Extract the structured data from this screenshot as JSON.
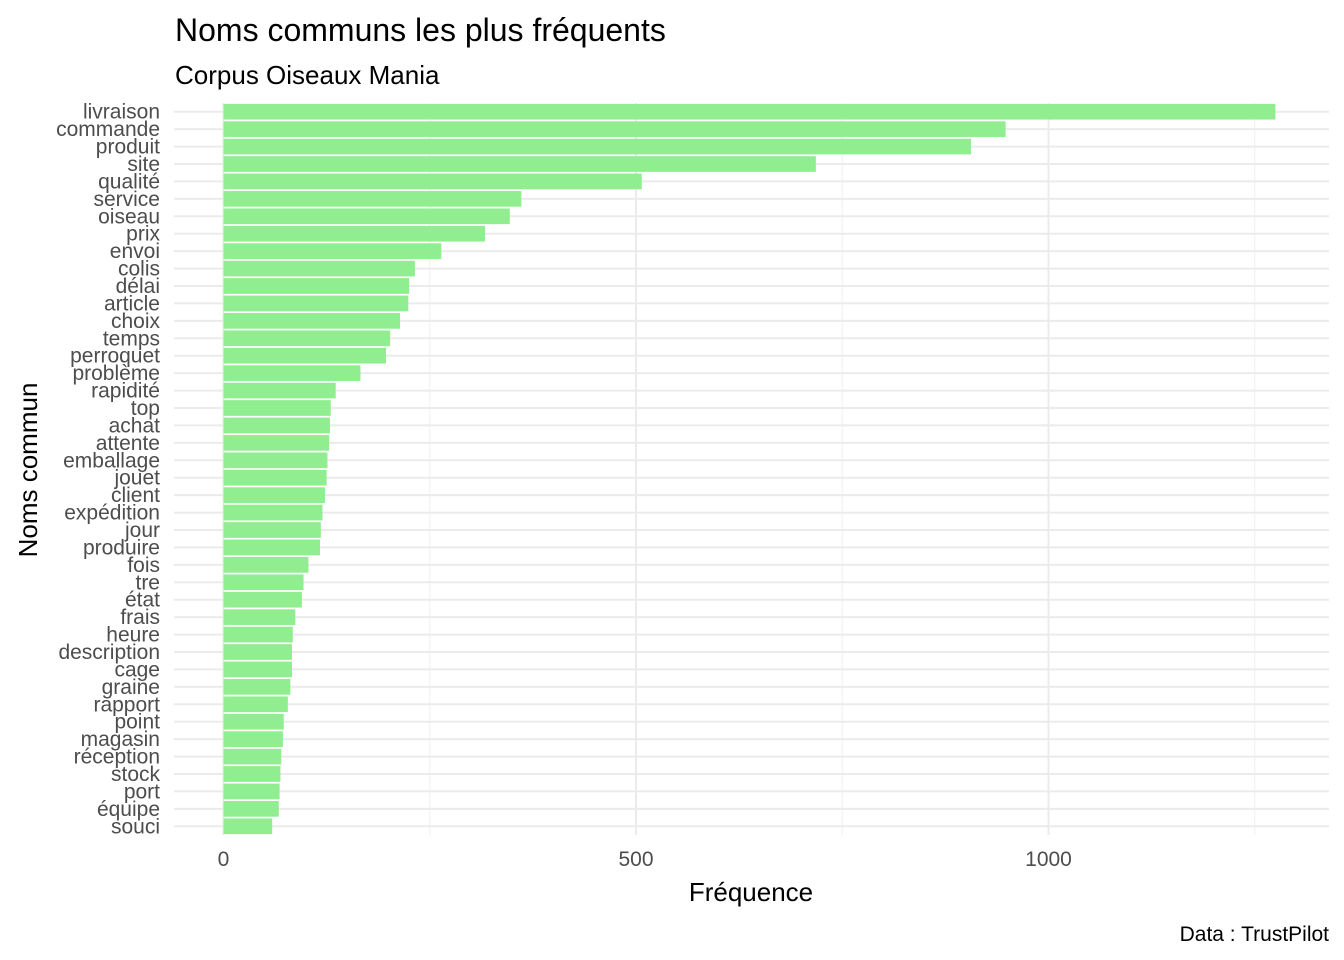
{
  "caption": "Data : TrustPilot",
  "colors": {
    "bar": "#90ee90",
    "grid": "#ebebeb",
    "text": "#4d4d4d"
  },
  "chart_data": {
    "type": "bar",
    "orientation": "horizontal",
    "title": "Noms communs les plus fréquents",
    "subtitle": "Corpus Oiseaux Mania",
    "xlabel": "Fréquence",
    "ylabel": "Noms commun",
    "xlim": [
      -60,
      1340
    ],
    "xticks": [
      0,
      500,
      1000
    ],
    "xtick_labels": [
      "0",
      "500",
      "1000"
    ],
    "grid": true,
    "categories": [
      "livraison",
      "commande",
      "produit",
      "site",
      "qualité",
      "service",
      "oiseau",
      "prix",
      "envoi",
      "colis",
      "délai",
      "article",
      "choix",
      "temps",
      "perroquet",
      "problème",
      "rapidité",
      "top",
      "achat",
      "attente",
      "emballage",
      "jouet",
      "client",
      "expédition",
      "jour",
      "produire",
      "fois",
      "tre",
      "état",
      "frais",
      "heure",
      "description",
      "cage",
      "graine",
      "rapport",
      "point",
      "magasin",
      "réception",
      "stock",
      "port",
      "équipe",
      "souci"
    ],
    "values": [
      1275,
      948,
      906,
      718,
      507,
      361,
      347,
      317,
      264,
      232,
      225,
      224,
      214,
      202,
      197,
      166,
      136,
      130,
      129,
      128,
      126,
      125,
      123,
      120,
      118,
      117,
      103,
      97,
      95,
      87,
      84,
      83,
      83,
      81,
      78,
      73,
      72,
      70,
      69,
      68,
      67,
      59
    ]
  }
}
